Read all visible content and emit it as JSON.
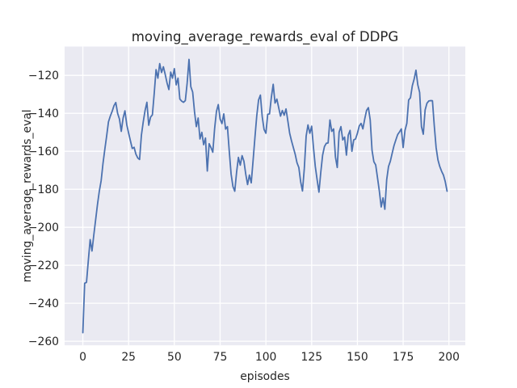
{
  "figure": {
    "background_color": "#FFFFFF"
  },
  "chart_data": {
    "type": "line",
    "title": "moving_average_rewards_eval of DDPG",
    "xlabel": "episodes",
    "ylabel": "moving_average_rewards_eval",
    "xlim": [
      -9.95,
      208.95
    ],
    "ylim": [
      -262.15,
      -104.85
    ],
    "x_ticks": [
      0,
      25,
      50,
      75,
      100,
      125,
      150,
      175,
      200
    ],
    "x_tick_labels": [
      "0",
      "25",
      "50",
      "75",
      "100",
      "125",
      "150",
      "175",
      "200"
    ],
    "y_ticks": [
      -260,
      -240,
      -220,
      -200,
      -180,
      -160,
      -140,
      -120
    ],
    "y_tick_labels": [
      "−260",
      "−240",
      "−220",
      "−200",
      "−180",
      "−160",
      "−140",
      "−120"
    ],
    "grid": true,
    "legend": null,
    "style": {
      "axes_background": "#EAEAF2",
      "grid_color": "#FFFFFF",
      "line_color": "#4C72B0",
      "text_color": "#262626",
      "line_width": 1.8,
      "grid_width": 1.3
    },
    "series": [
      {
        "name": "moving_average_rewards_eval",
        "x_is_index": true,
        "x_start": 0,
        "x_end": 199,
        "y": [
          -255.5,
          -229.5,
          -229.0,
          -217.5,
          -206.5,
          -212.5,
          -204.0,
          -196.0,
          -188.0,
          -181.0,
          -175.5,
          -166.5,
          -159.0,
          -152.0,
          -144.5,
          -141.5,
          -139.0,
          -136.0,
          -134.3,
          -140.0,
          -143.0,
          -149.5,
          -142.5,
          -138.7,
          -146.0,
          -150.3,
          -154.5,
          -158.5,
          -157.9,
          -161.5,
          -163.5,
          -164.3,
          -151.5,
          -144.5,
          -138.5,
          -134.2,
          -146.3,
          -142.0,
          -140.8,
          -129.5,
          -117.0,
          -121.5,
          -113.8,
          -118.5,
          -115.5,
          -119.5,
          -124.0,
          -127.5,
          -118.3,
          -121.5,
          -116.5,
          -125.0,
          -121.5,
          -132.5,
          -133.6,
          -134.2,
          -133.3,
          -124.0,
          -111.6,
          -126.0,
          -128.8,
          -139.0,
          -147.0,
          -142.5,
          -153.5,
          -150.0,
          -156.5,
          -153.0,
          -170.4,
          -156.0,
          -158.0,
          -160.5,
          -148.0,
          -139.0,
          -135.4,
          -143.0,
          -145.4,
          -140.3,
          -148.3,
          -147.0,
          -160.0,
          -172.0,
          -178.5,
          -181.0,
          -171.0,
          -163.2,
          -167.3,
          -162.3,
          -165.2,
          -172.0,
          -177.5,
          -172.5,
          -176.6,
          -165.0,
          -153.0,
          -141.5,
          -133.0,
          -130.4,
          -141.8,
          -148.5,
          -150.5,
          -140.5,
          -140.3,
          -131.5,
          -124.7,
          -134.6,
          -132.5,
          -137.0,
          -141.5,
          -138.5,
          -141.0,
          -137.7,
          -144.0,
          -150.5,
          -154.5,
          -158.0,
          -161.5,
          -166.0,
          -168.5,
          -176.0,
          -180.9,
          -169.0,
          -152.0,
          -146.1,
          -150.5,
          -146.8,
          -158.0,
          -168.0,
          -175.0,
          -181.5,
          -171.0,
          -162.0,
          -157.5,
          -155.8,
          -155.6,
          -143.5,
          -149.5,
          -148.2,
          -163.0,
          -168.5,
          -150.0,
          -147.0,
          -154.0,
          -152.5,
          -162.0,
          -151.5,
          -149.0,
          -160.0,
          -154.0,
          -153.5,
          -150.5,
          -146.7,
          -145.3,
          -148.2,
          -143.0,
          -138.5,
          -137.0,
          -143.5,
          -159.5,
          -165.5,
          -167.2,
          -174.0,
          -181.0,
          -189.3,
          -184.5,
          -190.5,
          -175.0,
          -168.0,
          -165.2,
          -161.0,
          -157.0,
          -154.0,
          -151.2,
          -149.8,
          -148.2,
          -158.0,
          -149.0,
          -145.3,
          -133.0,
          -131.8,
          -125.5,
          -122.0,
          -117.3,
          -125.0,
          -129.0,
          -147.0,
          -151.0,
          -138.2,
          -134.7,
          -133.5,
          -133.3,
          -133.4,
          -146.5,
          -158.0,
          -164.5,
          -168.0,
          -170.5,
          -172.5,
          -176.0,
          -181.0
        ]
      }
    ]
  }
}
